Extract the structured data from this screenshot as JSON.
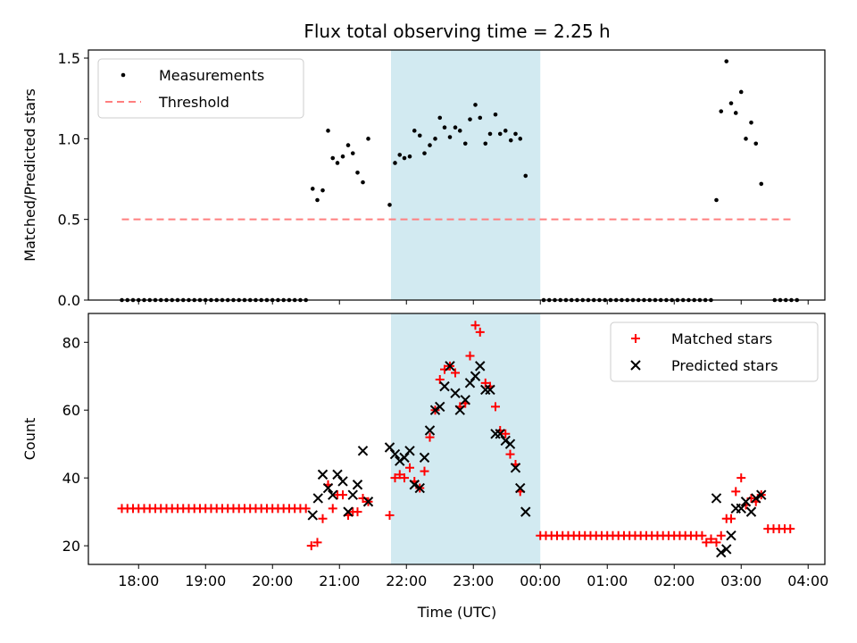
{
  "chart_data": {
    "title": "Flux total observing time = 2.25 h",
    "type": "scatter",
    "xlabel": "Time (UTC)",
    "x_unit": "hours since 18:00 UTC",
    "xlim": [
      -0.75,
      10.25
    ],
    "x_ticks": [
      {
        "v": 0,
        "label": "18:00"
      },
      {
        "v": 1,
        "label": "19:00"
      },
      {
        "v": 2,
        "label": "20:00"
      },
      {
        "v": 3,
        "label": "21:00"
      },
      {
        "v": 4,
        "label": "22:00"
      },
      {
        "v": 5,
        "label": "23:00"
      },
      {
        "v": 6,
        "label": "00:00"
      },
      {
        "v": 7,
        "label": "01:00"
      },
      {
        "v": 8,
        "label": "02:00"
      },
      {
        "v": 9,
        "label": "03:00"
      },
      {
        "v": 10,
        "label": "04:00"
      }
    ],
    "shaded_interval": {
      "start": 3.77,
      "end": 6.0,
      "color": "#add8e6"
    },
    "panels": [
      {
        "id": "ratio",
        "ylabel": "Matched/Predicted stars",
        "ylim": [
          0,
          1.55
        ],
        "y_ticks": [
          {
            "v": 0,
            "label": "0.0"
          },
          {
            "v": 0.5,
            "label": "0.5"
          },
          {
            "v": 1.0,
            "label": "1.0"
          },
          {
            "v": 1.5,
            "label": "1.5"
          }
        ],
        "legend": {
          "position": "upper-left",
          "entries": [
            {
              "label": "Measurements",
              "marker": "dot",
              "color": "#000000"
            },
            {
              "label": "Threshold",
              "marker": "dashed-line",
              "color": "#ff7f7f"
            }
          ]
        },
        "threshold": {
          "value": 0.5,
          "x_range": [
            -0.25,
            9.75
          ],
          "color": "#ff7f7f"
        },
        "series": [
          {
            "name": "Measurements",
            "marker": "dot",
            "color": "#000000",
            "zero_ranges": [
              {
                "from": -0.25,
                "to": 2.55,
                "step": 0.0833
              },
              {
                "from": 6.05,
                "to": 8.55,
                "step": 0.0833
              },
              {
                "from": 9.5,
                "to": 9.85,
                "step": 0.0833
              }
            ],
            "points": [
              [
                2.6,
                0.69
              ],
              [
                2.67,
                0.62
              ],
              [
                2.75,
                0.68
              ],
              [
                2.83,
                1.05
              ],
              [
                2.9,
                0.88
              ],
              [
                2.97,
                0.85
              ],
              [
                3.05,
                0.89
              ],
              [
                3.13,
                0.96
              ],
              [
                3.2,
                0.91
              ],
              [
                3.27,
                0.79
              ],
              [
                3.35,
                0.73
              ],
              [
                3.43,
                1.0
              ],
              [
                3.75,
                0.59
              ],
              [
                3.83,
                0.85
              ],
              [
                3.9,
                0.9
              ],
              [
                3.97,
                0.88
              ],
              [
                4.05,
                0.89
              ],
              [
                4.12,
                1.05
              ],
              [
                4.2,
                1.02
              ],
              [
                4.27,
                0.91
              ],
              [
                4.35,
                0.96
              ],
              [
                4.43,
                1.0
              ],
              [
                4.5,
                1.13
              ],
              [
                4.57,
                1.07
              ],
              [
                4.65,
                1.01
              ],
              [
                4.73,
                1.07
              ],
              [
                4.8,
                1.05
              ],
              [
                4.88,
                0.97
              ],
              [
                4.95,
                1.12
              ],
              [
                5.03,
                1.21
              ],
              [
                5.1,
                1.13
              ],
              [
                5.18,
                0.97
              ],
              [
                5.25,
                1.03
              ],
              [
                5.33,
                1.15
              ],
              [
                5.4,
                1.03
              ],
              [
                5.48,
                1.05
              ],
              [
                5.56,
                0.99
              ],
              [
                5.63,
                1.03
              ],
              [
                5.7,
                1.0
              ],
              [
                5.78,
                0.77
              ],
              [
                8.63,
                0.62
              ],
              [
                8.7,
                1.17
              ],
              [
                8.78,
                1.48
              ],
              [
                8.85,
                1.22
              ],
              [
                8.92,
                1.16
              ],
              [
                9.0,
                1.29
              ],
              [
                9.07,
                1.0
              ],
              [
                9.15,
                1.1
              ],
              [
                9.22,
                0.97
              ],
              [
                9.3,
                0.72
              ]
            ]
          }
        ]
      },
      {
        "id": "counts",
        "ylabel": "Count",
        "ylim": [
          14.5,
          88.5
        ],
        "y_ticks": [
          {
            "v": 20,
            "label": "20"
          },
          {
            "v": 40,
            "label": "40"
          },
          {
            "v": 60,
            "label": "60"
          },
          {
            "v": 80,
            "label": "80"
          }
        ],
        "legend": {
          "position": "upper-right",
          "entries": [
            {
              "label": "Matched stars",
              "marker": "plus",
              "color": "#ff0000"
            },
            {
              "label": "Predicted stars",
              "marker": "x",
              "color": "#000000"
            }
          ]
        },
        "series": [
          {
            "name": "Matched stars",
            "marker": "plus",
            "color": "#ff0000",
            "flat_ranges": [
              {
                "from": -0.25,
                "to": 2.55,
                "step": 0.0833,
                "value": 31
              },
              {
                "from": 6.0,
                "to": 8.45,
                "step": 0.0833,
                "value": 23
              },
              {
                "from": 9.4,
                "to": 9.8,
                "step": 0.0833,
                "value": 25
              }
            ],
            "points": [
              [
                2.58,
                20
              ],
              [
                2.67,
                21
              ],
              [
                2.75,
                28
              ],
              [
                2.83,
                38
              ],
              [
                2.9,
                31
              ],
              [
                2.97,
                35
              ],
              [
                3.05,
                35
              ],
              [
                3.13,
                29
              ],
              [
                3.2,
                30
              ],
              [
                3.27,
                30
              ],
              [
                3.35,
                34
              ],
              [
                3.43,
                33
              ],
              [
                3.75,
                29
              ],
              [
                3.83,
                40
              ],
              [
                3.9,
                41
              ],
              [
                3.97,
                40
              ],
              [
                4.05,
                43
              ],
              [
                4.12,
                39
              ],
              [
                4.2,
                37
              ],
              [
                4.27,
                42
              ],
              [
                4.35,
                52
              ],
              [
                4.43,
                60
              ],
              [
                4.5,
                69
              ],
              [
                4.57,
                72
              ],
              [
                4.65,
                73
              ],
              [
                4.73,
                71
              ],
              [
                4.8,
                61
              ],
              [
                4.88,
                62
              ],
              [
                4.95,
                76
              ],
              [
                5.03,
                85
              ],
              [
                5.1,
                83
              ],
              [
                5.18,
                68
              ],
              [
                5.25,
                67
              ],
              [
                5.33,
                61
              ],
              [
                5.4,
                54
              ],
              [
                5.48,
                53
              ],
              [
                5.55,
                47
              ],
              [
                5.63,
                44
              ],
              [
                5.7,
                36
              ],
              [
                8.48,
                21
              ],
              [
                8.55,
                22
              ],
              [
                8.63,
                21
              ],
              [
                8.7,
                23
              ],
              [
                8.78,
                28
              ],
              [
                8.85,
                28
              ],
              [
                8.92,
                36
              ],
              [
                9.0,
                40
              ],
              [
                9.07,
                32
              ],
              [
                9.15,
                34
              ],
              [
                9.22,
                33
              ],
              [
                9.3,
                35
              ]
            ]
          },
          {
            "name": "Predicted stars",
            "marker": "x",
            "color": "#000000",
            "points": [
              [
                2.6,
                29
              ],
              [
                2.68,
                34
              ],
              [
                2.75,
                41
              ],
              [
                2.83,
                37
              ],
              [
                2.9,
                35
              ],
              [
                2.97,
                41
              ],
              [
                3.05,
                39
              ],
              [
                3.13,
                30
              ],
              [
                3.2,
                35
              ],
              [
                3.27,
                38
              ],
              [
                3.35,
                48
              ],
              [
                3.43,
                33
              ],
              [
                3.75,
                49
              ],
              [
                3.83,
                47
              ],
              [
                3.9,
                45
              ],
              [
                3.97,
                46
              ],
              [
                4.05,
                48
              ],
              [
                4.12,
                38
              ],
              [
                4.2,
                37
              ],
              [
                4.27,
                46
              ],
              [
                4.35,
                54
              ],
              [
                4.43,
                60
              ],
              [
                4.5,
                61
              ],
              [
                4.57,
                67
              ],
              [
                4.65,
                73
              ],
              [
                4.73,
                65
              ],
              [
                4.8,
                60
              ],
              [
                4.88,
                63
              ],
              [
                4.95,
                68
              ],
              [
                5.03,
                70
              ],
              [
                5.1,
                73
              ],
              [
                5.18,
                66
              ],
              [
                5.25,
                66
              ],
              [
                5.33,
                53
              ],
              [
                5.4,
                53
              ],
              [
                5.48,
                51
              ],
              [
                5.55,
                50
              ],
              [
                5.63,
                43
              ],
              [
                5.7,
                37
              ],
              [
                5.78,
                30
              ],
              [
                8.63,
                34
              ],
              [
                8.7,
                18
              ],
              [
                8.78,
                19
              ],
              [
                8.85,
                23
              ],
              [
                8.92,
                31
              ],
              [
                9.0,
                31
              ],
              [
                9.07,
                33
              ],
              [
                9.15,
                30
              ],
              [
                9.22,
                34
              ],
              [
                9.3,
                35
              ]
            ]
          }
        ]
      }
    ]
  }
}
